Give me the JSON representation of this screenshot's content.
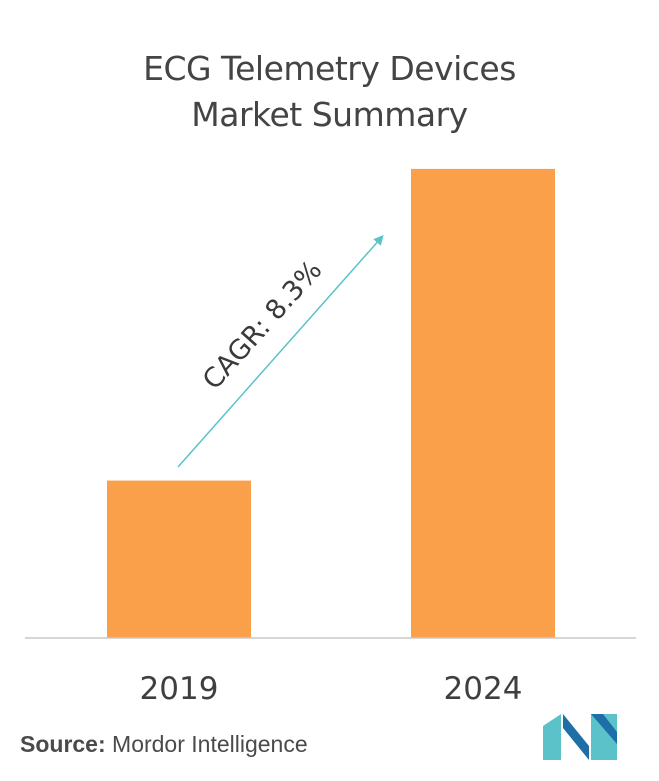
{
  "header": {
    "title_line1": "ECG Telemetry Devices",
    "title_line2": "Market Summary"
  },
  "chart_data": {
    "type": "bar",
    "categories": [
      "2019",
      "2024"
    ],
    "values": [
      1.0,
      2.98
    ],
    "ylim": [
      0,
      3.1
    ],
    "grid": false,
    "legend": "none",
    "bar_color": "#FBA04A",
    "axis_color": "#C8C8C8",
    "annotation": {
      "text": "CAGR: 8.3%",
      "arrow_color": "#5BC2C9"
    }
  },
  "footer": {
    "source_key": "Source:",
    "source_value": " Mordor Intelligence",
    "logo": "mordor-intelligence-logo",
    "logo_colors": [
      "#5BC2C9",
      "#1E6FA8"
    ]
  }
}
